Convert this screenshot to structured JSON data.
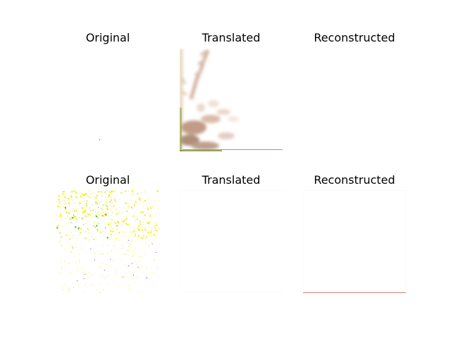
{
  "rows": [
    {
      "panels": [
        {
          "title": "Original"
        },
        {
          "title": "Translated"
        },
        {
          "title": "Reconstructed"
        }
      ]
    },
    {
      "panels": [
        {
          "title": "Original"
        },
        {
          "title": "Translated"
        },
        {
          "title": "Reconstructed"
        }
      ]
    }
  ],
  "colors": {
    "background": "#ffffff",
    "text": "#000000",
    "speckle_yellow": "#f2ec1a",
    "speckle_green": "#2db82d",
    "speckle_magenta": "#b01cb0",
    "blur_brown": "#b88a72",
    "edge_red": "#e87a7a"
  }
}
